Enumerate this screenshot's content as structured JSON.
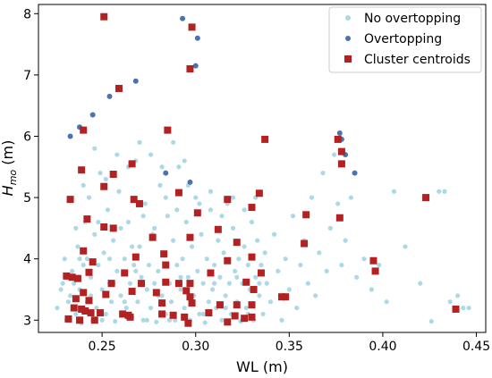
{
  "chart_data": {
    "type": "scatter",
    "xlabel": "WL (m)",
    "ylabel_main": "H",
    "ylabel_sub": "mo",
    "ylabel_unit": " (m)",
    "xlim": [
      0.216,
      0.455
    ],
    "ylim": [
      2.8,
      8.15
    ],
    "xticks": [
      0.25,
      0.3,
      0.35,
      0.4,
      0.45
    ],
    "xtick_labels": [
      "0.25",
      "0.30",
      "0.35",
      "0.40",
      "0.45"
    ],
    "yticks": [
      3,
      4,
      5,
      6,
      7,
      8
    ],
    "ytick_labels": [
      "3",
      "4",
      "5",
      "6",
      "7",
      "8"
    ],
    "grid": false,
    "legend_position": "top-right",
    "series": [
      {
        "name": "No overtopping",
        "color": "#add8e6",
        "marker": "circle",
        "points": [
          [
            0.226,
            3.2
          ],
          [
            0.229,
            3.6
          ],
          [
            0.231,
            3.0
          ],
          [
            0.233,
            3.4
          ],
          [
            0.234,
            3.8
          ],
          [
            0.236,
            3.1
          ],
          [
            0.237,
            4.2
          ],
          [
            0.238,
            3.5
          ],
          [
            0.239,
            2.95
          ],
          [
            0.24,
            3.9
          ],
          [
            0.241,
            4.6
          ],
          [
            0.242,
            3.3
          ],
          [
            0.243,
            5.0
          ],
          [
            0.244,
            3.7
          ],
          [
            0.245,
            3.0
          ],
          [
            0.246,
            4.4
          ],
          [
            0.247,
            3.2
          ],
          [
            0.248,
            3.9
          ],
          [
            0.249,
            5.4
          ],
          [
            0.25,
            3.5
          ],
          [
            0.251,
            4.1
          ],
          [
            0.252,
            3.1
          ],
          [
            0.253,
            4.8
          ],
          [
            0.254,
            3.6
          ],
          [
            0.255,
            3.3
          ],
          [
            0.256,
            4.3
          ],
          [
            0.257,
            2.98
          ],
          [
            0.258,
            3.8
          ],
          [
            0.259,
            5.1
          ],
          [
            0.26,
            3.4
          ],
          [
            0.262,
            4.0
          ],
          [
            0.263,
            3.2
          ],
          [
            0.264,
            4.6
          ],
          [
            0.265,
            3.6
          ],
          [
            0.266,
            3.05
          ],
          [
            0.267,
            3.9
          ],
          [
            0.268,
            5.6
          ],
          [
            0.269,
            3.3
          ],
          [
            0.27,
            4.2
          ],
          [
            0.271,
            3.7
          ],
          [
            0.272,
            3.0
          ],
          [
            0.273,
            4.9
          ],
          [
            0.274,
            3.5
          ],
          [
            0.275,
            3.9
          ],
          [
            0.276,
            3.2
          ],
          [
            0.277,
            4.4
          ],
          [
            0.278,
            3.6
          ],
          [
            0.279,
            2.97
          ],
          [
            0.28,
            3.8
          ],
          [
            0.281,
            5.2
          ],
          [
            0.282,
            3.4
          ],
          [
            0.283,
            4.1
          ],
          [
            0.284,
            3.1
          ],
          [
            0.285,
            4.7
          ],
          [
            0.286,
            3.6
          ],
          [
            0.287,
            3.3
          ],
          [
            0.288,
            4.3
          ],
          [
            0.289,
            3.0
          ],
          [
            0.29,
            3.9
          ],
          [
            0.291,
            5.5
          ],
          [
            0.292,
            3.5
          ],
          [
            0.293,
            4.0
          ],
          [
            0.294,
            3.2
          ],
          [
            0.295,
            4.6
          ],
          [
            0.296,
            3.7
          ],
          [
            0.297,
            3.0
          ],
          [
            0.298,
            4.2
          ],
          [
            0.299,
            3.4
          ],
          [
            0.3,
            5.0
          ],
          [
            0.301,
            3.8
          ],
          [
            0.302,
            3.1
          ],
          [
            0.303,
            4.4
          ],
          [
            0.304,
            3.6
          ],
          [
            0.305,
            2.96
          ],
          [
            0.306,
            4.0
          ],
          [
            0.307,
            3.3
          ],
          [
            0.308,
            4.8
          ],
          [
            0.309,
            3.5
          ],
          [
            0.31,
            3.9
          ],
          [
            0.311,
            3.2
          ],
          [
            0.312,
            4.3
          ],
          [
            0.313,
            3.7
          ],
          [
            0.314,
            3.0
          ],
          [
            0.315,
            4.1
          ],
          [
            0.316,
            3.4
          ],
          [
            0.317,
            4.9
          ],
          [
            0.318,
            3.6
          ],
          [
            0.319,
            3.1
          ],
          [
            0.32,
            4.5
          ],
          [
            0.321,
            3.8
          ],
          [
            0.322,
            3.3
          ],
          [
            0.323,
            4.0
          ],
          [
            0.324,
            2.98
          ],
          [
            0.325,
            3.6
          ],
          [
            0.326,
            4.2
          ],
          [
            0.327,
            3.2
          ],
          [
            0.328,
            3.9
          ],
          [
            0.329,
            3.5
          ],
          [
            0.33,
            4.6
          ],
          [
            0.331,
            3.0
          ],
          [
            0.332,
            3.7
          ],
          [
            0.333,
            4.3
          ],
          [
            0.334,
            3.4
          ],
          [
            0.335,
            3.9
          ],
          [
            0.336,
            3.1
          ],
          [
            0.337,
            4.1
          ],
          [
            0.338,
            3.6
          ],
          [
            0.34,
            3.3
          ],
          [
            0.342,
            4.4
          ],
          [
            0.344,
            3.8
          ],
          [
            0.346,
            3.0
          ],
          [
            0.348,
            4.0
          ],
          [
            0.35,
            3.5
          ],
          [
            0.352,
            4.7
          ],
          [
            0.354,
            3.2
          ],
          [
            0.356,
            3.9
          ],
          [
            0.358,
            4.3
          ],
          [
            0.36,
            3.6
          ],
          [
            0.362,
            5.0
          ],
          [
            0.364,
            3.4
          ],
          [
            0.366,
            4.1
          ],
          [
            0.368,
            5.4
          ],
          [
            0.37,
            3.8
          ],
          [
            0.372,
            4.5
          ],
          [
            0.374,
            5.7
          ],
          [
            0.376,
            4.9
          ],
          [
            0.378,
            3.9
          ],
          [
            0.38,
            4.3
          ],
          [
            0.383,
            5.0
          ],
          [
            0.386,
            3.7
          ],
          [
            0.39,
            4.0
          ],
          [
            0.394,
            3.5
          ],
          [
            0.398,
            3.9
          ],
          [
            0.402,
            3.3
          ],
          [
            0.406,
            5.1
          ],
          [
            0.412,
            4.2
          ],
          [
            0.42,
            3.6
          ],
          [
            0.426,
            2.98
          ],
          [
            0.43,
            5.1
          ],
          [
            0.433,
            5.1
          ],
          [
            0.436,
            3.3
          ],
          [
            0.44,
            3.4
          ],
          [
            0.443,
            3.2
          ],
          [
            0.446,
            3.2
          ],
          [
            0.228,
            3.5
          ],
          [
            0.232,
            3.3
          ],
          [
            0.235,
            3.6
          ],
          [
            0.238,
            4.0
          ],
          [
            0.244,
            3.4
          ],
          [
            0.25,
            3.0
          ],
          [
            0.256,
            3.6
          ],
          [
            0.262,
            3.3
          ],
          [
            0.268,
            3.8
          ],
          [
            0.274,
            3.0
          ],
          [
            0.28,
            3.4
          ],
          [
            0.286,
            3.0
          ],
          [
            0.292,
            3.7
          ],
          [
            0.298,
            3.3
          ],
          [
            0.304,
            3.1
          ],
          [
            0.31,
            3.6
          ],
          [
            0.316,
            3.2
          ],
          [
            0.322,
            3.7
          ],
          [
            0.328,
            3.1
          ],
          [
            0.334,
            3.6
          ],
          [
            0.23,
            4.0
          ],
          [
            0.236,
            4.5
          ],
          [
            0.242,
            4.0
          ],
          [
            0.248,
            4.6
          ],
          [
            0.254,
            4.0
          ],
          [
            0.26,
            4.5
          ],
          [
            0.266,
            4.2
          ],
          [
            0.272,
            4.7
          ],
          [
            0.278,
            4.5
          ],
          [
            0.284,
            5.0
          ],
          [
            0.29,
            4.8
          ],
          [
            0.296,
            5.2
          ],
          [
            0.302,
            4.9
          ],
          [
            0.308,
            5.1
          ],
          [
            0.314,
            4.7
          ],
          [
            0.32,
            5.0
          ],
          [
            0.326,
            4.8
          ],
          [
            0.332,
            5.0
          ],
          [
            0.252,
            5.3
          ],
          [
            0.258,
            5.7
          ],
          [
            0.264,
            5.5
          ],
          [
            0.27,
            5.9
          ],
          [
            0.276,
            5.7
          ],
          [
            0.282,
            5.5
          ],
          [
            0.288,
            5.9
          ],
          [
            0.294,
            5.6
          ],
          [
            0.24,
            5.2
          ],
          [
            0.246,
            5.8
          ]
        ]
      },
      {
        "name": "Overtopping",
        "color": "#4c72b0",
        "marker": "circle",
        "points": [
          [
            0.251,
            7.95
          ],
          [
            0.293,
            7.92
          ],
          [
            0.298,
            7.78
          ],
          [
            0.301,
            7.6
          ],
          [
            0.3,
            7.15
          ],
          [
            0.297,
            7.1
          ],
          [
            0.259,
            6.78
          ],
          [
            0.268,
            6.9
          ],
          [
            0.254,
            6.65
          ],
          [
            0.245,
            6.35
          ],
          [
            0.238,
            6.15
          ],
          [
            0.24,
            6.1
          ],
          [
            0.233,
            6.0
          ],
          [
            0.285,
            6.1
          ],
          [
            0.337,
            5.95
          ],
          [
            0.377,
            6.05
          ],
          [
            0.378,
            5.95
          ],
          [
            0.38,
            5.7
          ],
          [
            0.385,
            5.4
          ],
          [
            0.284,
            5.4
          ],
          [
            0.297,
            5.25
          ]
        ]
      },
      {
        "name": "Cluster centroids",
        "color": "#b22222",
        "marker": "square",
        "points": [
          [
            0.251,
            7.95
          ],
          [
            0.298,
            7.78
          ],
          [
            0.297,
            7.1
          ],
          [
            0.259,
            6.78
          ],
          [
            0.24,
            6.1
          ],
          [
            0.285,
            6.1
          ],
          [
            0.337,
            5.95
          ],
          [
            0.376,
            5.95
          ],
          [
            0.378,
            5.75
          ],
          [
            0.378,
            5.55
          ],
          [
            0.266,
            5.55
          ],
          [
            0.239,
            5.45
          ],
          [
            0.256,
            5.38
          ],
          [
            0.251,
            5.18
          ],
          [
            0.233,
            4.97
          ],
          [
            0.267,
            4.97
          ],
          [
            0.291,
            5.08
          ],
          [
            0.317,
            4.97
          ],
          [
            0.334,
            5.07
          ],
          [
            0.33,
            4.84
          ],
          [
            0.27,
            4.9
          ],
          [
            0.301,
            4.75
          ],
          [
            0.242,
            4.65
          ],
          [
            0.251,
            4.52
          ],
          [
            0.256,
            4.5
          ],
          [
            0.312,
            4.48
          ],
          [
            0.359,
            4.72
          ],
          [
            0.377,
            4.67
          ],
          [
            0.423,
            5.0
          ],
          [
            0.277,
            4.35
          ],
          [
            0.297,
            4.35
          ],
          [
            0.322,
            4.27
          ],
          [
            0.358,
            4.25
          ],
          [
            0.24,
            4.13
          ],
          [
            0.283,
            4.08
          ],
          [
            0.268,
            4.03
          ],
          [
            0.317,
            3.97
          ],
          [
            0.33,
            4.03
          ],
          [
            0.395,
            3.97
          ],
          [
            0.245,
            3.95
          ],
          [
            0.243,
            3.78
          ],
          [
            0.262,
            3.77
          ],
          [
            0.284,
            3.9
          ],
          [
            0.308,
            3.77
          ],
          [
            0.335,
            3.77
          ],
          [
            0.396,
            3.8
          ],
          [
            0.231,
            3.72
          ],
          [
            0.234,
            3.7
          ],
          [
            0.237,
            3.68
          ],
          [
            0.255,
            3.6
          ],
          [
            0.271,
            3.6
          ],
          [
            0.284,
            3.62
          ],
          [
            0.291,
            3.6
          ],
          [
            0.297,
            3.6
          ],
          [
            0.327,
            3.62
          ],
          [
            0.331,
            3.5
          ],
          [
            0.24,
            3.45
          ],
          [
            0.252,
            3.42
          ],
          [
            0.266,
            3.47
          ],
          [
            0.279,
            3.45
          ],
          [
            0.295,
            3.48
          ],
          [
            0.297,
            3.38
          ],
          [
            0.346,
            3.38
          ],
          [
            0.348,
            3.38
          ],
          [
            0.236,
            3.35
          ],
          [
            0.243,
            3.32
          ],
          [
            0.282,
            3.28
          ],
          [
            0.298,
            3.28
          ],
          [
            0.313,
            3.25
          ],
          [
            0.322,
            3.25
          ],
          [
            0.33,
            3.25
          ],
          [
            0.235,
            3.2
          ],
          [
            0.239,
            3.18
          ],
          [
            0.241,
            3.15
          ],
          [
            0.244,
            3.12
          ],
          [
            0.249,
            3.12
          ],
          [
            0.261,
            3.1
          ],
          [
            0.264,
            3.08
          ],
          [
            0.282,
            3.1
          ],
          [
            0.288,
            3.08
          ],
          [
            0.294,
            3.05
          ],
          [
            0.307,
            3.12
          ],
          [
            0.321,
            3.07
          ],
          [
            0.326,
            3.03
          ],
          [
            0.33,
            3.05
          ],
          [
            0.232,
            3.02
          ],
          [
            0.238,
            3.0
          ],
          [
            0.246,
            3.0
          ],
          [
            0.265,
            3.05
          ],
          [
            0.296,
            2.95
          ],
          [
            0.317,
            2.97
          ],
          [
            0.439,
            3.18
          ]
        ]
      }
    ]
  }
}
